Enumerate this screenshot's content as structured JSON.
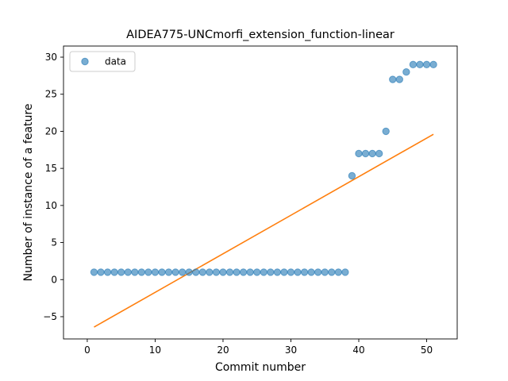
{
  "chart_data": {
    "type": "scatter",
    "title": "AIDEA775-UNCmorfi_extension_function-linear",
    "xlabel": "Commit number",
    "ylabel": "Number of instance of a feature",
    "xlim": [
      -3.5,
      54.5
    ],
    "ylim": [
      -8.0,
      31.5
    ],
    "xticks": [
      0,
      10,
      20,
      30,
      40,
      50
    ],
    "yticks": [
      -5,
      0,
      5,
      10,
      15,
      20,
      25,
      30
    ],
    "grid": false,
    "legend": {
      "position": "top-left",
      "entries": [
        "data"
      ]
    },
    "colors": {
      "data": "#1f77b4",
      "fit": "#ff7f0e"
    },
    "series": [
      {
        "name": "data",
        "kind": "scatter",
        "x": [
          1,
          2,
          3,
          4,
          5,
          6,
          7,
          8,
          9,
          10,
          11,
          12,
          13,
          14,
          15,
          16,
          17,
          18,
          19,
          20,
          21,
          22,
          23,
          24,
          25,
          26,
          27,
          28,
          29,
          30,
          31,
          32,
          33,
          34,
          35,
          36,
          37,
          38,
          39,
          40,
          41,
          42,
          43,
          44,
          45,
          46,
          47,
          48,
          49,
          50,
          51
        ],
        "y": [
          1,
          1,
          1,
          1,
          1,
          1,
          1,
          1,
          1,
          1,
          1,
          1,
          1,
          1,
          1,
          1,
          1,
          1,
          1,
          1,
          1,
          1,
          1,
          1,
          1,
          1,
          1,
          1,
          1,
          1,
          1,
          1,
          1,
          1,
          1,
          1,
          1,
          1,
          14,
          17,
          17,
          17,
          17,
          20,
          27,
          27,
          28,
          29,
          29,
          29,
          29
        ]
      },
      {
        "kind": "line",
        "x": [
          1,
          51
        ],
        "y": [
          -6.4,
          19.6
        ]
      }
    ]
  }
}
